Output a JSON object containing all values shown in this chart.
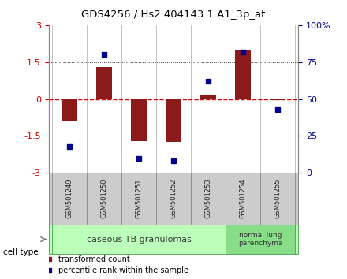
{
  "title": "GDS4256 / Hs2.404143.1.A1_3p_at",
  "samples": [
    "GSM501249",
    "GSM501250",
    "GSM501251",
    "GSM501252",
    "GSM501253",
    "GSM501254",
    "GSM501255"
  ],
  "transformed_count": [
    -0.9,
    1.3,
    -1.7,
    -1.75,
    0.15,
    2.0,
    -0.05
  ],
  "percentile_rank": [
    18,
    80,
    10,
    8,
    62,
    82,
    43
  ],
  "ylim_left": [
    -3,
    3
  ],
  "ylim_right": [
    0,
    100
  ],
  "yticks_left": [
    -3,
    -1.5,
    0,
    1.5,
    3
  ],
  "ytick_labels_left": [
    "-3",
    "-1.5",
    "0",
    "1.5",
    "3"
  ],
  "yticks_right": [
    0,
    25,
    50,
    75,
    100
  ],
  "ytick_labels_right": [
    "0",
    "25",
    "50",
    "75",
    "100%"
  ],
  "bar_color": "#8B1A1A",
  "dot_color": "#00008B",
  "hline_color": "#CC0000",
  "dotted_color": "#333333",
  "group1_label": "caseous TB granulomas",
  "group1_color": "#BBFFBB",
  "group1_samples": 5,
  "group2_label": "normal lung\nparenchyma",
  "group2_color": "#88DD88",
  "group2_samples": 2,
  "legend_item1_color": "#8B1A1A",
  "legend_item1_label": "transformed count",
  "legend_item2_color": "#00008B",
  "legend_item2_label": "percentile rank within the sample",
  "cell_type_label": "cell type",
  "sample_box_color": "#CCCCCC",
  "sample_box_edge": "#888888",
  "background_color": "#FFFFFF",
  "plot_bg": "#FFFFFF",
  "bar_width": 0.45
}
